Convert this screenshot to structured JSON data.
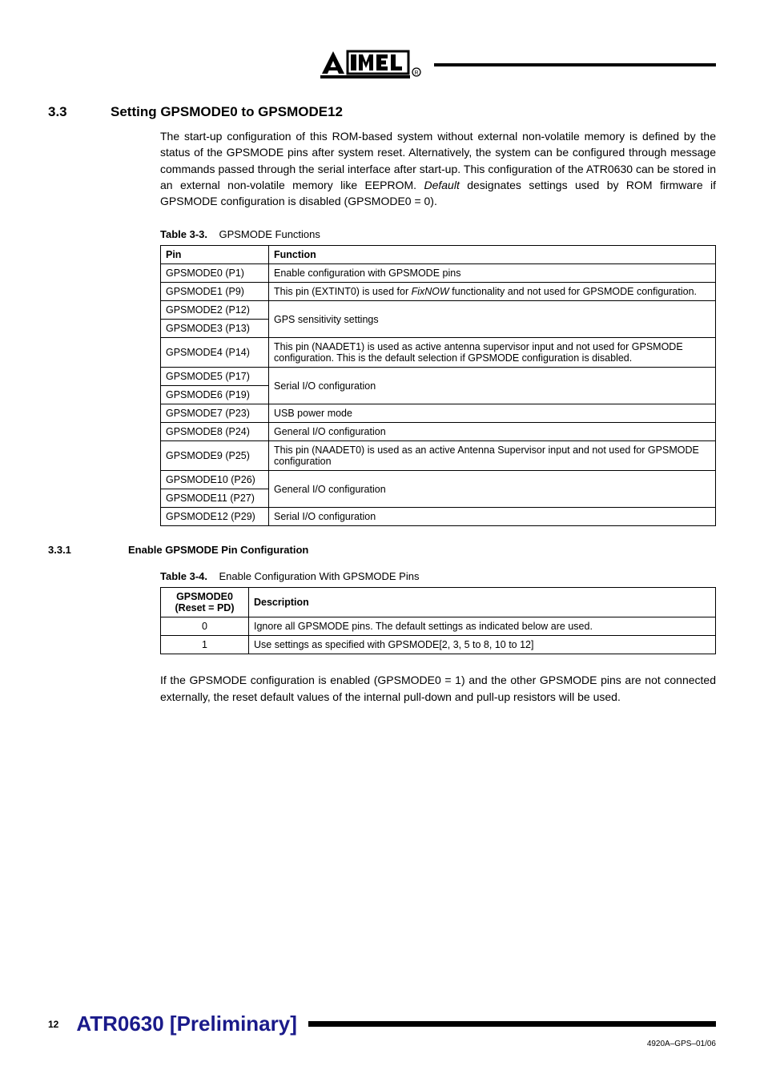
{
  "section": {
    "num": "3.3",
    "title": "Setting GPSMODE0 to GPSMODE12",
    "paragraph_a": "The start-up configuration of this ROM-based system without external non-volatile memory is defined by the status of the GPSMODE pins after system reset. Alternatively, the system can be configured through message commands passed through the serial interface after start-up. This configuration of the ATR0630 can be stored in an external non-volatile memory like EEPROM. ",
    "paragraph_italic": "Default",
    "paragraph_b": " designates settings used by ROM firmware if GPSMODE configuration is disabled (GPSMODE0 = 0)."
  },
  "table33": {
    "label": "Table 3-3.",
    "caption": "GPSMODE Functions",
    "headers": {
      "pin": "Pin",
      "func": "Function"
    },
    "rows": [
      {
        "pin": "GPSMODE0 (P1)",
        "func": "Enable configuration with GPSMODE pins",
        "rowspan": 1
      },
      {
        "pin": "GPSMODE1 (P9)",
        "func": "This pin (EXTINT0) is used for FixNOW functionality and not used for GPSMODE configuration.",
        "rowspan": 1,
        "italic_word": "FixNOW"
      },
      {
        "pin": "GPSMODE2 (P12)",
        "func": "GPS sensitivity settings",
        "rowspan": 2
      },
      {
        "pin": "GPSMODE3 (P13)"
      },
      {
        "pin": "GPSMODE4 (P14)",
        "func": "This pin (NAADET1) is used as active antenna supervisor input and not used for GPSMODE configuration. This is the default selection if GPSMODE configuration is disabled.",
        "rowspan": 1
      },
      {
        "pin": "GPSMODE5 (P17)",
        "func": "Serial I/O configuration",
        "rowspan": 2
      },
      {
        "pin": "GPSMODE6 (P19)"
      },
      {
        "pin": "GPSMODE7 (P23)",
        "func": "USB power mode",
        "rowspan": 1
      },
      {
        "pin": "GPSMODE8 (P24)",
        "func": "General I/O configuration",
        "rowspan": 1
      },
      {
        "pin": "GPSMODE9 (P25)",
        "func": "This pin (NAADET0) is used as an active Antenna Supervisor input and not used for GPSMODE configuration",
        "rowspan": 1
      },
      {
        "pin": "GPSMODE10 (P26)",
        "func": "General I/O configuration",
        "rowspan": 2
      },
      {
        "pin": "GPSMODE11 (P27)"
      },
      {
        "pin": "GPSMODE12 (P29)",
        "func": "Serial I/O configuration",
        "rowspan": 1
      }
    ]
  },
  "subsection": {
    "num": "3.3.1",
    "title": "Enable GPSMODE Pin Configuration"
  },
  "table34": {
    "label": "Table 3-4.",
    "caption": "Enable Configuration With GPSMODE Pins",
    "headers": {
      "mode": "GPSMODE0 (Reset = PD)",
      "desc": "Description"
    },
    "rows": [
      {
        "mode": "0",
        "desc": "Ignore all GPSMODE pins. The default settings as indicated below are used."
      },
      {
        "mode": "1",
        "desc": "Use settings as specified with GPSMODE[2, 3, 5 to 8, 10 to 12]"
      }
    ]
  },
  "closing_text": "If the GPSMODE configuration is enabled (GPSMODE0 = 1) and the other GPSMODE pins are not connected externally, the reset default values of the internal pull-down and pull-up resistors will be used.",
  "footer": {
    "page_num": "12",
    "doc_title": "ATR0630 [Preliminary]",
    "doc_id": "4920A–GPS–01/06"
  },
  "colors": {
    "doc_title": "#1a1a8a",
    "text": "#000000",
    "bg": "#ffffff"
  }
}
